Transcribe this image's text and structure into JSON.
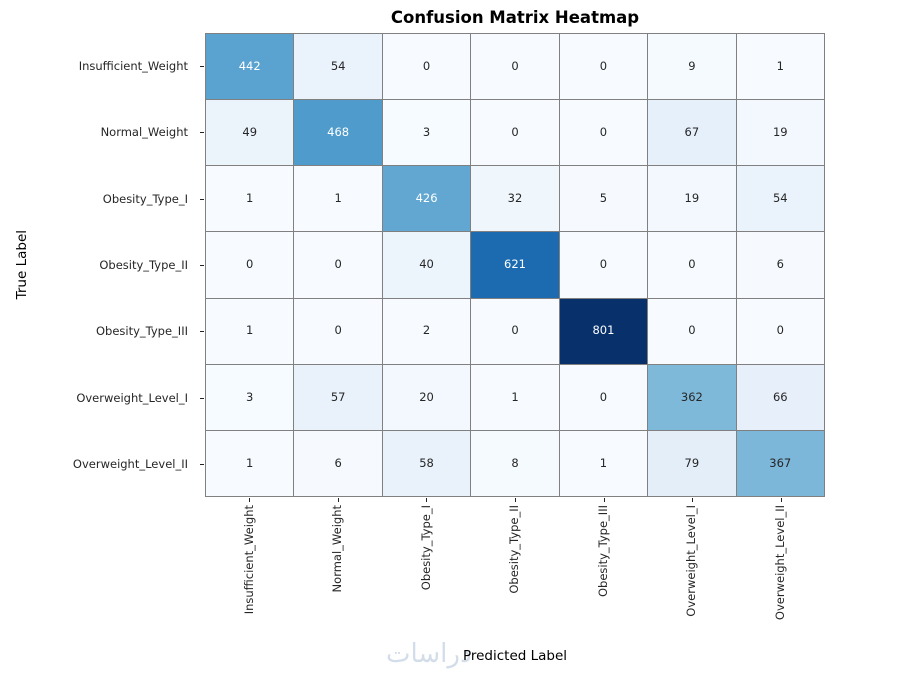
{
  "title": "Confusion Matrix Heatmap",
  "x_axis_title": "Predicted Label",
  "y_axis_title": "True Label",
  "watermark_text": "دراسات",
  "chart_data": {
    "type": "heatmap",
    "title": "Confusion Matrix Heatmap",
    "xlabel": "Predicted Label",
    "ylabel": "True Label",
    "x_categories": [
      "Insufficient_Weight",
      "Normal_Weight",
      "Obesity_Type_I",
      "Obesity_Type_II",
      "Obesity_Type_III",
      "Overweight_Level_I",
      "Overweight_Level_II"
    ],
    "y_categories": [
      "Insufficient_Weight",
      "Normal_Weight",
      "Obesity_Type_I",
      "Obesity_Type_II",
      "Obesity_Type_III",
      "Overweight_Level_I",
      "Overweight_Level_II"
    ],
    "matrix": [
      [
        442,
        54,
        0,
        0,
        0,
        9,
        1
      ],
      [
        49,
        468,
        3,
        0,
        0,
        67,
        19
      ],
      [
        1,
        1,
        426,
        32,
        5,
        19,
        54
      ],
      [
        0,
        0,
        40,
        621,
        0,
        0,
        6
      ],
      [
        1,
        0,
        2,
        0,
        801,
        0,
        0
      ],
      [
        3,
        57,
        20,
        1,
        0,
        362,
        66
      ],
      [
        1,
        6,
        58,
        8,
        1,
        79,
        367
      ]
    ],
    "vmin": 0,
    "vmax": 801,
    "colormap": {
      "name": "Blues",
      "stops": [
        "#f7fbff",
        "#deebf7",
        "#c6dbef",
        "#9ecae1",
        "#6baed6",
        "#4292c6",
        "#2171b5",
        "#08519c",
        "#08306b"
      ]
    },
    "grid_line_color": "#808080",
    "tick_color": "#222222",
    "text_color_dark": "#262626",
    "text_color_light": "#ffffff",
    "legend": "none",
    "grid": "cell-borders"
  }
}
